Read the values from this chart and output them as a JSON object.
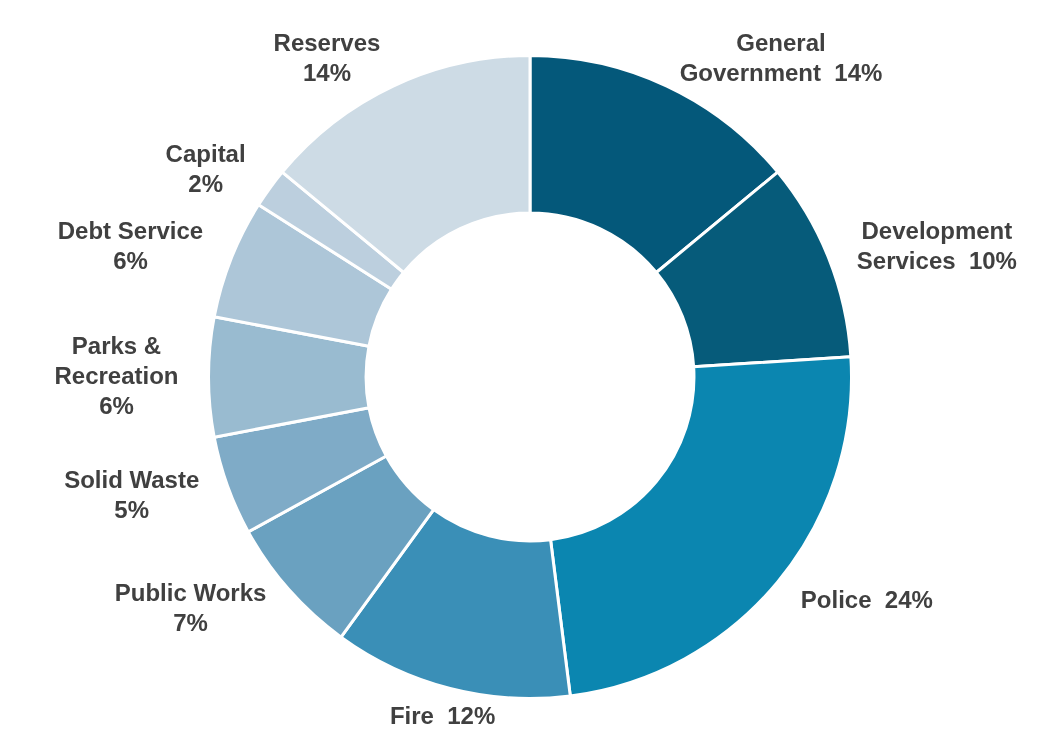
{
  "chart_data": {
    "type": "donut",
    "categories": [
      "General Government",
      "Development Services",
      "Police",
      "Fire",
      "Public Works",
      "Solid Waste",
      "Parks & Recreation",
      "Debt Service",
      "Capital",
      "Reserves"
    ],
    "values": [
      14,
      10,
      24,
      12,
      7,
      5,
      6,
      6,
      2,
      14
    ],
    "value_labels": [
      "14%",
      "10%",
      "24%",
      "12%",
      "7%",
      "5%",
      "6%",
      "6%",
      "2%",
      "14%"
    ],
    "colors": [
      "#04587a",
      "#065b7a",
      "#0b86b0",
      "#3a8fb7",
      "#6aa1c0",
      "#7fabc7",
      "#99bbd0",
      "#adc6d8",
      "#bccfde",
      "#cddbe5"
    ],
    "legend": false
  }
}
